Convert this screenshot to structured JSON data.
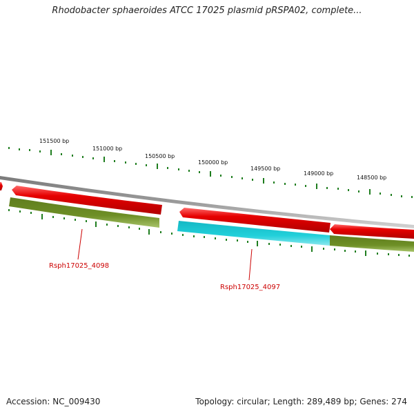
{
  "title": "Rhodobacter sphaeroides ATCC 17025 plasmid pRSPA02, complete...",
  "footer": {
    "accession": "Accession: NC_009430",
    "summary": "Topology: circular; Length: 289,489 bp; Genes: 274"
  },
  "colors": {
    "backbone": "#8c8c8c",
    "tick": "#1e7d1e",
    "forward_feature": "#e60000",
    "reverse_feature_olive": "#6b8a23",
    "reverse_feature_cyan": "#1ec8d2",
    "label": "#cc0000"
  },
  "scale_labels": [
    "151500 bp",
    "151000 bp",
    "150500 bp",
    "150000 bp",
    "149500 bp",
    "149000 bp",
    "148500 bp"
  ],
  "gene_labels": [
    "Rsph17025_4098",
    "Rsph17025_4097"
  ]
}
